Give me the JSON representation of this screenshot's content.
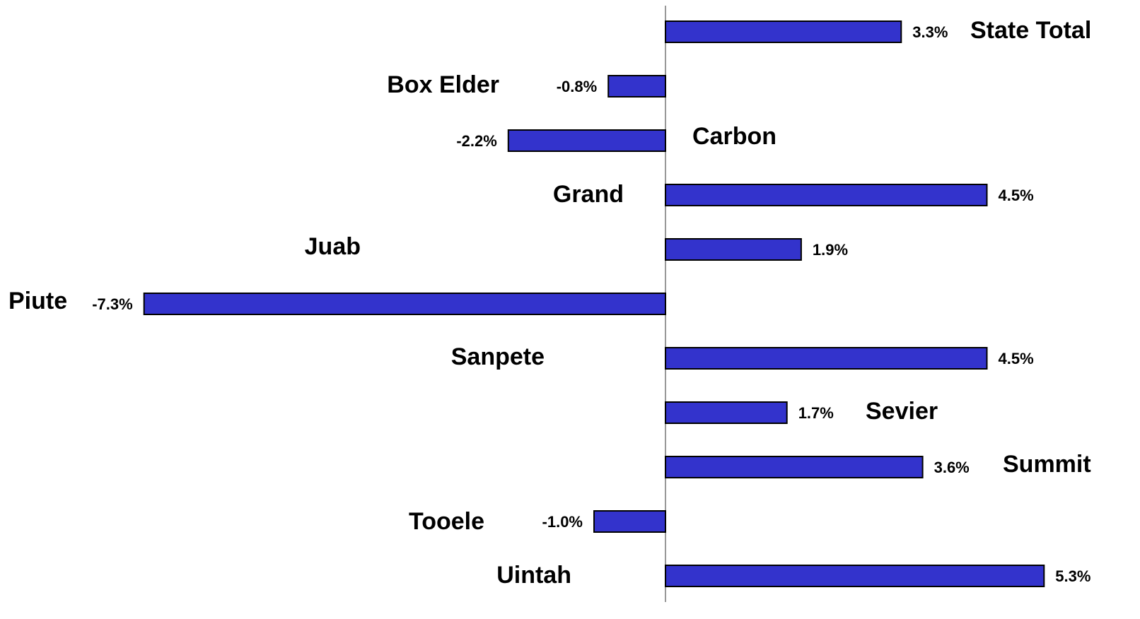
{
  "chart_data": {
    "type": "barh",
    "categories": [
      "State Total",
      "Box Elder",
      "Carbon",
      "Grand",
      "Juab",
      "Piute",
      "Sanpete",
      "Sevier",
      "Summit",
      "Tooele",
      "Uintah"
    ],
    "values": [
      3.3,
      -0.8,
      -2.2,
      4.5,
      1.9,
      -7.3,
      4.5,
      1.7,
      3.6,
      -1.0,
      5.3
    ],
    "value_labels": [
      "3.3%",
      "-0.8%",
      "-2.2%",
      "4.5%",
      "1.9%",
      "-7.3%",
      "4.5%",
      "1.7%",
      "3.6%",
      "-1.0%",
      "5.3%"
    ],
    "color": "#3333cc"
  }
}
